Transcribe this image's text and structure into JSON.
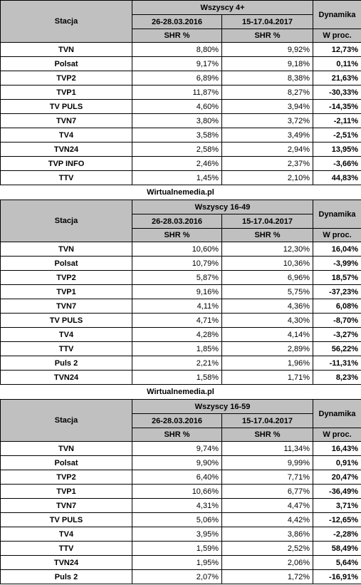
{
  "sections": [
    {
      "group": "Wszyscy 4+",
      "header": {
        "station": "Stacja",
        "period1": "26-28.03.2016",
        "period2": "15-17.04.2017",
        "dynamics": "Dynamika",
        "shr1": "SHR %",
        "shr2": "SHR %",
        "wproc": "W proc."
      },
      "rows": [
        {
          "station": "TVN",
          "v1": "8,80%",
          "v2": "9,92%",
          "dyn": "12,73%"
        },
        {
          "station": "Polsat",
          "v1": "9,17%",
          "v2": "9,18%",
          "dyn": "0,11%"
        },
        {
          "station": "TVP2",
          "v1": "6,89%",
          "v2": "8,38%",
          "dyn": "21,63%"
        },
        {
          "station": "TVP1",
          "v1": "11,87%",
          "v2": "8,27%",
          "dyn": "-30,33%"
        },
        {
          "station": "TV PULS",
          "v1": "4,60%",
          "v2": "3,94%",
          "dyn": "-14,35%"
        },
        {
          "station": "TVN7",
          "v1": "3,80%",
          "v2": "3,72%",
          "dyn": "-2,11%"
        },
        {
          "station": "TV4",
          "v1": "3,58%",
          "v2": "3,49%",
          "dyn": "-2,51%"
        },
        {
          "station": "TVN24",
          "v1": "2,58%",
          "v2": "2,94%",
          "dyn": "13,95%"
        },
        {
          "station": "TVP INFO",
          "v1": "2,46%",
          "v2": "2,37%",
          "dyn": "-3,66%"
        },
        {
          "station": "TTV",
          "v1": "1,45%",
          "v2": "2,10%",
          "dyn": "44,83%"
        }
      ],
      "caption": "Wirtualnemedia.pl"
    },
    {
      "group": "Wszyscy 16-49",
      "header": {
        "station": "Stacja",
        "period1": "26-28.03.2016",
        "period2": "15-17.04.2017",
        "dynamics": "Dynamika",
        "shr1": "SHR %",
        "shr2": "SHR %",
        "wproc": "W proc."
      },
      "rows": [
        {
          "station": "TVN",
          "v1": "10,60%",
          "v2": "12,30%",
          "dyn": "16,04%"
        },
        {
          "station": "Polsat",
          "v1": "10,79%",
          "v2": "10,36%",
          "dyn": "-3,99%"
        },
        {
          "station": "TVP2",
          "v1": "5,87%",
          "v2": "6,96%",
          "dyn": "18,57%"
        },
        {
          "station": "TVP1",
          "v1": "9,16%",
          "v2": "5,75%",
          "dyn": "-37,23%"
        },
        {
          "station": "TVN7",
          "v1": "4,11%",
          "v2": "4,36%",
          "dyn": "6,08%"
        },
        {
          "station": "TV PULS",
          "v1": "4,71%",
          "v2": "4,30%",
          "dyn": "-8,70%"
        },
        {
          "station": "TV4",
          "v1": "4,28%",
          "v2": "4,14%",
          "dyn": "-3,27%"
        },
        {
          "station": "TTV",
          "v1": "1,85%",
          "v2": "2,89%",
          "dyn": "56,22%"
        },
        {
          "station": "Puls 2",
          "v1": "2,21%",
          "v2": "1,96%",
          "dyn": "-11,31%"
        },
        {
          "station": "TVN24",
          "v1": "1,58%",
          "v2": "1,71%",
          "dyn": "8,23%"
        }
      ],
      "caption": "Wirtualnemedia.pl"
    },
    {
      "group": "Wszyscy 16-59",
      "header": {
        "station": "Stacja",
        "period1": "26-28.03.2016",
        "period2": "15-17.04.2017",
        "dynamics": "Dynamika",
        "shr1": "SHR %",
        "shr2": "SHR %",
        "wproc": "W proc."
      },
      "rows": [
        {
          "station": "TVN",
          "v1": "9,74%",
          "v2": "11,34%",
          "dyn": "16,43%"
        },
        {
          "station": "Polsat",
          "v1": "9,90%",
          "v2": "9,99%",
          "dyn": "0,91%"
        },
        {
          "station": "TVP2",
          "v1": "6,40%",
          "v2": "7,71%",
          "dyn": "20,47%"
        },
        {
          "station": "TVP1",
          "v1": "10,66%",
          "v2": "6,77%",
          "dyn": "-36,49%"
        },
        {
          "station": "TVN7",
          "v1": "4,31%",
          "v2": "4,47%",
          "dyn": "3,71%"
        },
        {
          "station": "TV PULS",
          "v1": "5,06%",
          "v2": "4,42%",
          "dyn": "-12,65%"
        },
        {
          "station": "TV4",
          "v1": "3,95%",
          "v2": "3,86%",
          "dyn": "-2,28%"
        },
        {
          "station": "TTV",
          "v1": "1,59%",
          "v2": "2,52%",
          "dyn": "58,49%"
        },
        {
          "station": "TVN24",
          "v1": "1,95%",
          "v2": "2,06%",
          "dyn": "5,64%"
        },
        {
          "station": "Puls 2",
          "v1": "2,07%",
          "v2": "1,72%",
          "dyn": "-16,91%"
        }
      ]
    }
  ]
}
